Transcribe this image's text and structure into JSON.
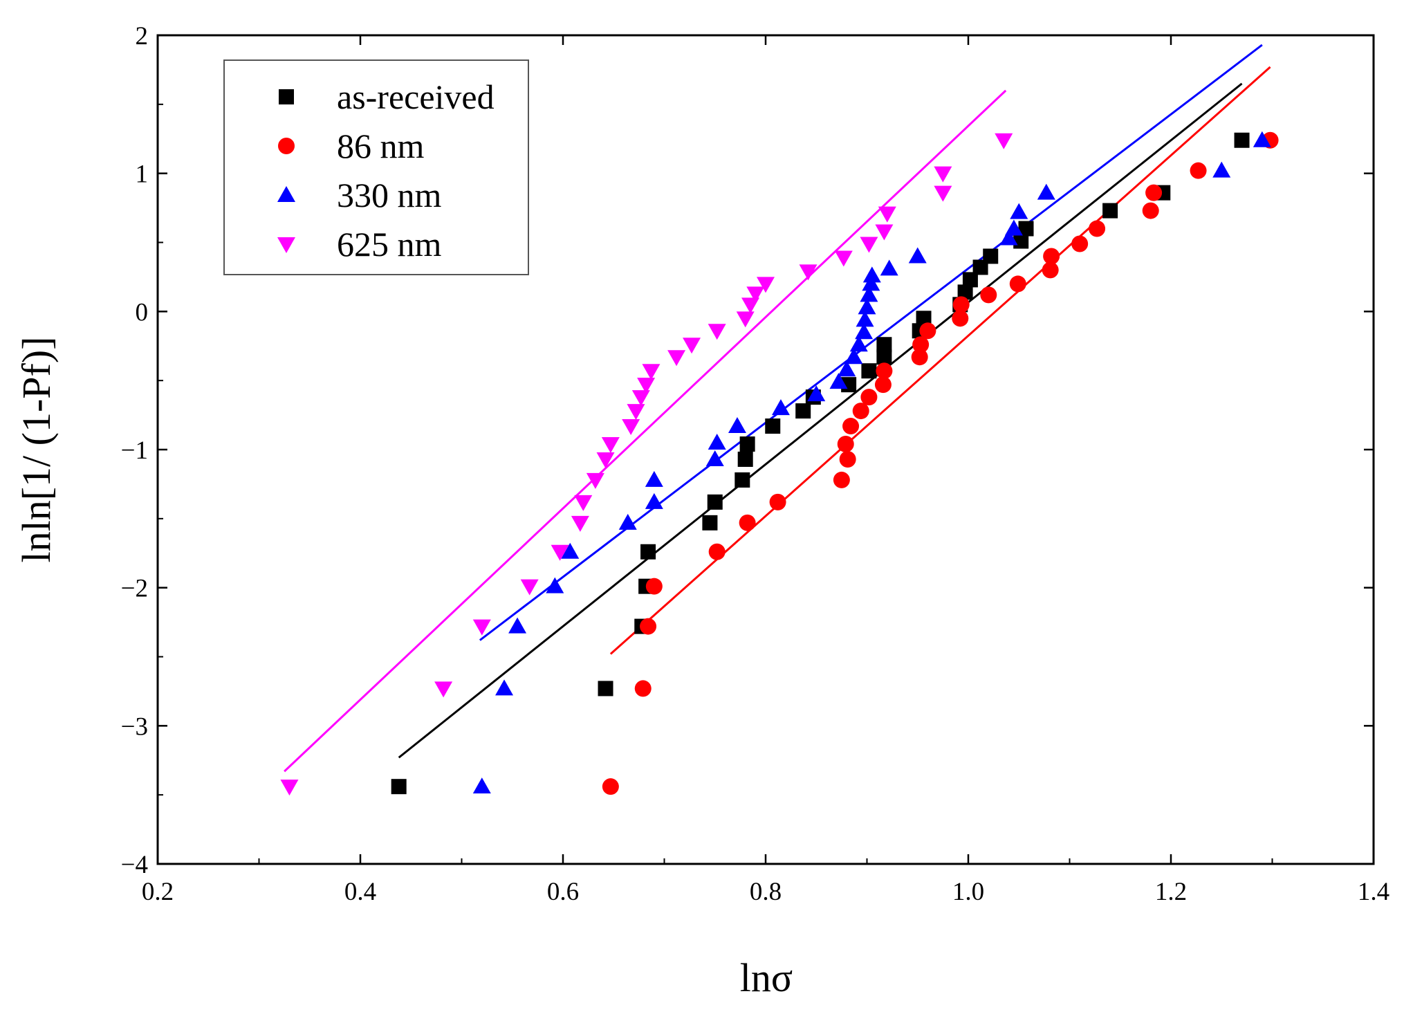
{
  "chart_data": {
    "type": "scatter",
    "xlabel": "lnσ",
    "ylabel": "lnln[1/ (1-Pf)]",
    "xlim": [
      0.2,
      1.4
    ],
    "ylim": [
      -4,
      2
    ],
    "x_ticks": [
      "0.2",
      "0.4",
      "0.6",
      "0.8",
      "1.0",
      "1.2",
      "1.4"
    ],
    "y_ticks": [
      "−4",
      "−3",
      "−2",
      "−1",
      "0",
      "1",
      "2"
    ],
    "x_tick_values": [
      0.2,
      0.4,
      0.6,
      0.8,
      1.0,
      1.2,
      1.4
    ],
    "y_tick_values": [
      -4,
      -3,
      -2,
      -1,
      0,
      1,
      2
    ],
    "grid": false,
    "legend_position": "top-left",
    "series": [
      {
        "name": "as-received",
        "color": "#000000",
        "marker": "square",
        "fit_line": [
          [
            0.438,
            -3.23
          ],
          [
            1.27,
            1.65
          ]
        ],
        "points": [
          [
            0.438,
            -3.44
          ],
          [
            0.642,
            -2.73
          ],
          [
            0.678,
            -2.28
          ],
          [
            0.682,
            -1.99
          ],
          [
            0.684,
            -1.74
          ],
          [
            0.745,
            -1.53
          ],
          [
            0.75,
            -1.38
          ],
          [
            0.777,
            -1.22
          ],
          [
            0.78,
            -1.07
          ],
          [
            0.782,
            -0.96
          ],
          [
            0.807,
            -0.83
          ],
          [
            0.837,
            -0.72
          ],
          [
            0.847,
            -0.62
          ],
          [
            0.882,
            -0.53
          ],
          [
            0.902,
            -0.43
          ],
          [
            0.917,
            -0.33
          ],
          [
            0.917,
            -0.24
          ],
          [
            0.952,
            -0.14
          ],
          [
            0.956,
            -0.05
          ],
          [
            0.992,
            0.05
          ],
          [
            0.997,
            0.14
          ],
          [
            1.002,
            0.23
          ],
          [
            1.012,
            0.32
          ],
          [
            1.022,
            0.4
          ],
          [
            1.052,
            0.51
          ],
          [
            1.057,
            0.6
          ],
          [
            1.14,
            0.73
          ],
          [
            1.192,
            0.86
          ],
          [
            1.27,
            1.24
          ]
        ]
      },
      {
        "name": "86 nm",
        "color": "#ff0000",
        "marker": "circle",
        "fit_line": [
          [
            0.647,
            -2.48
          ],
          [
            1.298,
            1.77
          ]
        ],
        "points": [
          [
            0.647,
            -3.44
          ],
          [
            0.679,
            -2.73
          ],
          [
            0.684,
            -2.28
          ],
          [
            0.69,
            -1.99
          ],
          [
            0.752,
            -1.74
          ],
          [
            0.782,
            -1.53
          ],
          [
            0.812,
            -1.38
          ],
          [
            0.875,
            -1.22
          ],
          [
            0.881,
            -1.07
          ],
          [
            0.879,
            -0.96
          ],
          [
            0.884,
            -0.83
          ],
          [
            0.894,
            -0.72
          ],
          [
            0.902,
            -0.62
          ],
          [
            0.916,
            -0.53
          ],
          [
            0.917,
            -0.43
          ],
          [
            0.952,
            -0.33
          ],
          [
            0.953,
            -0.24
          ],
          [
            0.96,
            -0.14
          ],
          [
            0.992,
            -0.05
          ],
          [
            0.993,
            0.05
          ],
          [
            1.02,
            0.12
          ],
          [
            1.049,
            0.2
          ],
          [
            1.081,
            0.3
          ],
          [
            1.082,
            0.4
          ],
          [
            1.11,
            0.49
          ],
          [
            1.127,
            0.6
          ],
          [
            1.18,
            0.73
          ],
          [
            1.183,
            0.86
          ],
          [
            1.227,
            1.02
          ],
          [
            1.298,
            1.24
          ]
        ]
      },
      {
        "name": "330 nm",
        "color": "#0000ff",
        "marker": "triangle-up",
        "fit_line": [
          [
            0.518,
            -2.38
          ],
          [
            1.29,
            1.93
          ]
        ],
        "points": [
          [
            0.52,
            -3.44
          ],
          [
            0.542,
            -2.73
          ],
          [
            0.555,
            -2.28
          ],
          [
            0.592,
            -1.99
          ],
          [
            0.607,
            -1.74
          ],
          [
            0.664,
            -1.53
          ],
          [
            0.69,
            -1.38
          ],
          [
            0.69,
            -1.22
          ],
          [
            0.75,
            -1.07
          ],
          [
            0.752,
            -0.95
          ],
          [
            0.772,
            -0.83
          ],
          [
            0.815,
            -0.7
          ],
          [
            0.85,
            -0.6
          ],
          [
            0.872,
            -0.51
          ],
          [
            0.88,
            -0.42
          ],
          [
            0.887,
            -0.33
          ],
          [
            0.892,
            -0.24
          ],
          [
            0.897,
            -0.15
          ],
          [
            0.898,
            -0.06
          ],
          [
            0.9,
            0.03
          ],
          [
            0.902,
            0.12
          ],
          [
            0.904,
            0.2
          ],
          [
            0.905,
            0.26
          ],
          [
            0.922,
            0.31
          ],
          [
            0.95,
            0.4
          ],
          [
            1.04,
            0.53
          ],
          [
            1.045,
            0.6
          ],
          [
            1.05,
            0.72
          ],
          [
            1.077,
            0.86
          ],
          [
            1.25,
            1.02
          ],
          [
            1.29,
            1.24
          ]
        ]
      },
      {
        "name": "625 nm",
        "color": "#ff00ff",
        "marker": "triangle-down",
        "fit_line": [
          [
            0.325,
            -3.33
          ],
          [
            1.037,
            1.6
          ]
        ],
        "points": [
          [
            0.33,
            -3.44
          ],
          [
            0.482,
            -2.73
          ],
          [
            0.52,
            -2.28
          ],
          [
            0.567,
            -1.99
          ],
          [
            0.597,
            -1.74
          ],
          [
            0.617,
            -1.53
          ],
          [
            0.62,
            -1.38
          ],
          [
            0.632,
            -1.22
          ],
          [
            0.642,
            -1.07
          ],
          [
            0.647,
            -0.96
          ],
          [
            0.667,
            -0.83
          ],
          [
            0.672,
            -0.72
          ],
          [
            0.677,
            -0.62
          ],
          [
            0.682,
            -0.53
          ],
          [
            0.687,
            -0.43
          ],
          [
            0.712,
            -0.33
          ],
          [
            0.727,
            -0.24
          ],
          [
            0.752,
            -0.14
          ],
          [
            0.78,
            -0.05
          ],
          [
            0.785,
            0.05
          ],
          [
            0.79,
            0.13
          ],
          [
            0.8,
            0.2
          ],
          [
            0.842,
            0.29
          ],
          [
            0.877,
            0.39
          ],
          [
            0.902,
            0.49
          ],
          [
            0.917,
            0.58
          ],
          [
            0.92,
            0.71
          ],
          [
            0.975,
            0.86
          ],
          [
            0.975,
            1.0
          ],
          [
            1.035,
            1.24
          ]
        ]
      }
    ]
  }
}
